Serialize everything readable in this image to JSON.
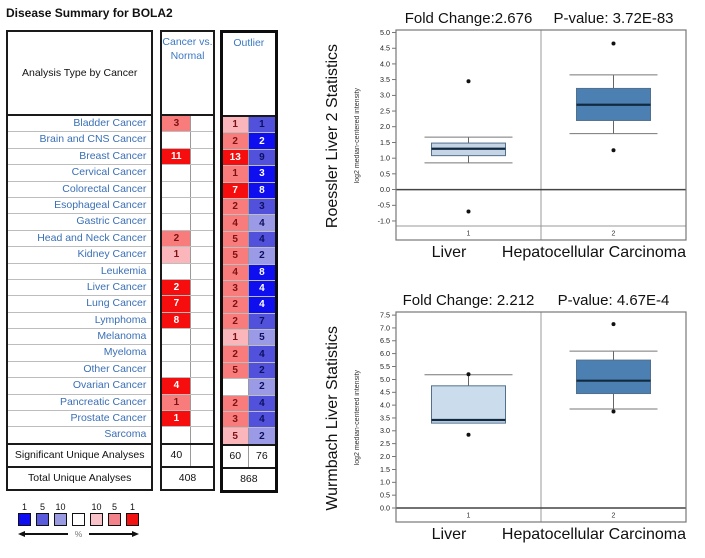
{
  "page_title": "Disease Summary for BOLA2",
  "legend": {
    "numbers": [
      "1",
      "5",
      "10",
      "",
      "10",
      "5",
      "1"
    ],
    "percent_label": "%",
    "swatches": [
      "#0E0EF0",
      "#5A5ADC",
      "#9A9AE2",
      "#FFFFFF",
      "#F8C2C8",
      "#F4828A",
      "#F21212"
    ]
  },
  "chart_data": [
    {
      "type": "table",
      "name": "disease-summary-grid",
      "corner_header": "Analysis Type by Cancer",
      "column_groups": [
        {
          "label": "Cancer vs. Normal",
          "subcolumns": 2
        },
        {
          "label": "Outlier",
          "subcolumns": 2
        }
      ],
      "palette": {
        "r1": {
          "bg": "#F60E0E",
          "fg": "#FFFFFF"
        },
        "r5": {
          "bg": "#F87C7C",
          "fg": "#7E1111"
        },
        "r10": {
          "bg": "#FAB6BA",
          "fg": "#7E1111"
        },
        "b1": {
          "bg": "#0E0EEF",
          "fg": "#FFFFFF"
        },
        "b5": {
          "bg": "#5151DC",
          "fg": "#0D1060"
        },
        "b10": {
          "bg": "#9A9AE6",
          "fg": "#0D1060"
        }
      },
      "rows": [
        {
          "label": "Bladder Cancer",
          "cvn1": {
            "value": "3",
            "shade": "r5"
          },
          "out1": {
            "value": "1",
            "shade": "r10"
          },
          "out2": {
            "value": "1",
            "shade": "b5"
          }
        },
        {
          "label": "Brain and CNS Cancer",
          "cvn1": null,
          "out1": {
            "value": "2",
            "shade": "r5"
          },
          "out2": {
            "value": "2",
            "shade": "b1"
          }
        },
        {
          "label": "Breast Cancer",
          "cvn1": {
            "value": "11",
            "shade": "r1"
          },
          "out1": {
            "value": "13",
            "shade": "r1"
          },
          "out2": {
            "value": "9",
            "shade": "b5"
          }
        },
        {
          "label": "Cervical Cancer",
          "cvn1": null,
          "out1": {
            "value": "1",
            "shade": "r5"
          },
          "out2": {
            "value": "3",
            "shade": "b1"
          }
        },
        {
          "label": "Colorectal Cancer",
          "cvn1": null,
          "out1": {
            "value": "7",
            "shade": "r1"
          },
          "out2": {
            "value": "8",
            "shade": "b1"
          }
        },
        {
          "label": "Esophageal Cancer",
          "cvn1": null,
          "out1": {
            "value": "2",
            "shade": "r5"
          },
          "out2": {
            "value": "3",
            "shade": "b5"
          }
        },
        {
          "label": "Gastric Cancer",
          "cvn1": null,
          "out1": {
            "value": "4",
            "shade": "r5"
          },
          "out2": {
            "value": "4",
            "shade": "b10"
          }
        },
        {
          "label": "Head and Neck Cancer",
          "cvn1": {
            "value": "2",
            "shade": "r5"
          },
          "out1": {
            "value": "5",
            "shade": "r5"
          },
          "out2": {
            "value": "4",
            "shade": "b5"
          }
        },
        {
          "label": "Kidney Cancer",
          "cvn1": {
            "value": "1",
            "shade": "r10"
          },
          "out1": {
            "value": "5",
            "shade": "r5"
          },
          "out2": {
            "value": "2",
            "shade": "b10"
          }
        },
        {
          "label": "Leukemia",
          "cvn1": null,
          "out1": {
            "value": "4",
            "shade": "r5"
          },
          "out2": {
            "value": "8",
            "shade": "b1"
          }
        },
        {
          "label": "Liver Cancer",
          "cvn1": {
            "value": "2",
            "shade": "r1"
          },
          "out1": {
            "value": "3",
            "shade": "r5"
          },
          "out2": {
            "value": "4",
            "shade": "b1"
          }
        },
        {
          "label": "Lung Cancer",
          "cvn1": {
            "value": "7",
            "shade": "r1"
          },
          "out1": {
            "value": "2",
            "shade": "r5"
          },
          "out2": {
            "value": "4",
            "shade": "b1"
          }
        },
        {
          "label": "Lymphoma",
          "cvn1": {
            "value": "8",
            "shade": "r1"
          },
          "out1": {
            "value": "2",
            "shade": "r5"
          },
          "out2": {
            "value": "7",
            "shade": "b5"
          }
        },
        {
          "label": "Melanoma",
          "cvn1": null,
          "out1": {
            "value": "1",
            "shade": "r10"
          },
          "out2": {
            "value": "5",
            "shade": "b10"
          }
        },
        {
          "label": "Myeloma",
          "cvn1": null,
          "out1": {
            "value": "2",
            "shade": "r5"
          },
          "out2": {
            "value": "4",
            "shade": "b5"
          }
        },
        {
          "label": "Other Cancer",
          "cvn1": null,
          "out1": {
            "value": "5",
            "shade": "r5"
          },
          "out2": {
            "value": "2",
            "shade": "b5"
          }
        },
        {
          "label": "Ovarian Cancer",
          "cvn1": {
            "value": "4",
            "shade": "r1"
          },
          "out1": null,
          "out2": {
            "value": "2",
            "shade": "b10"
          }
        },
        {
          "label": "Pancreatic Cancer",
          "cvn1": {
            "value": "1",
            "shade": "r5"
          },
          "out1": {
            "value": "2",
            "shade": "r5"
          },
          "out2": {
            "value": "4",
            "shade": "b5"
          }
        },
        {
          "label": "Prostate Cancer",
          "cvn1": {
            "value": "1",
            "shade": "r1"
          },
          "out1": {
            "value": "3",
            "shade": "r5"
          },
          "out2": {
            "value": "4",
            "shade": "b5"
          }
        },
        {
          "label": "Sarcoma",
          "cvn1": null,
          "out1": {
            "value": "5",
            "shade": "r10"
          },
          "out2": {
            "value": "2",
            "shade": "b10"
          }
        }
      ],
      "significant_row": {
        "label": "Significant Unique Analyses",
        "cvn": "40",
        "out1": "60",
        "out2": "76"
      },
      "total_row": {
        "label": "Total Unique Analyses",
        "cvn": "408",
        "out": "868"
      }
    },
    {
      "type": "box",
      "name": "roessler-liver-2",
      "stat_label": "Roessler Liver 2 Statistics",
      "fold_change": "Fold Change:2.676",
      "p_value": "P-value: 3.72E-83",
      "y_axis_label": "log2 median-centered intensity",
      "ylim_edges": [
        -1.16,
        5.08
      ],
      "y_ticks": [
        "5.0",
        "4.5",
        "4.0",
        "3.5",
        "3.0",
        "2.5",
        "2.0",
        "1.5",
        "1.0",
        "0.5",
        "0.0",
        "-0.5",
        "-1.0"
      ],
      "zero_line": 0.0,
      "x_ticks": [
        "1",
        "2"
      ],
      "x_labels": [
        "Liver",
        "Hepatocellular Carcinoma"
      ],
      "groups": [
        {
          "label": "Liver",
          "whisker_low": 0.85,
          "q1": 1.08,
          "median": 1.3,
          "q3": 1.48,
          "whisker_high": 1.67,
          "outliers": [
            3.45,
            -0.7
          ],
          "fill": "#C5D5E6"
        },
        {
          "label": "Hepatocellular Carcinoma",
          "whisker_low": 1.78,
          "q1": 2.2,
          "median": 2.7,
          "q3": 3.22,
          "whisker_high": 3.65,
          "outliers": [
            4.65,
            1.25
          ],
          "fill": "#4C80B2"
        }
      ]
    },
    {
      "type": "box",
      "name": "wurmbach-liver",
      "stat_label": "Wurmbach Liver Statistics",
      "fold_change": "Fold Change: 2.212",
      "p_value": "P-value: 4.67E-4",
      "y_axis_label": "log2 median-centered intensity",
      "ylim_edges": [
        0.0,
        7.62
      ],
      "y_ticks": [
        "7.5",
        "7.0",
        "6.5",
        "6.0",
        "5.5",
        "5.0",
        "4.5",
        "4.0",
        "3.5",
        "3.0",
        "2.5",
        "2.0",
        "1.5",
        "1.0",
        "0.5",
        "0.0"
      ],
      "zero_line": 0.0,
      "x_ticks": [
        "1",
        "2"
      ],
      "x_labels": [
        "Liver",
        "Hepatocellular Carcinoma"
      ],
      "groups": [
        {
          "label": "Liver",
          "whisker_low": 3.3,
          "q1": 3.3,
          "median": 3.42,
          "q3": 4.75,
          "whisker_high": 5.18,
          "outliers": [
            5.2,
            2.85
          ],
          "fill": "#CBDCEC"
        },
        {
          "label": "Hepatocellular Carcinoma",
          "whisker_low": 3.85,
          "q1": 4.45,
          "median": 4.95,
          "q3": 5.75,
          "whisker_high": 6.1,
          "outliers": [
            7.15,
            3.75
          ],
          "fill": "#4C80B2"
        }
      ]
    }
  ]
}
